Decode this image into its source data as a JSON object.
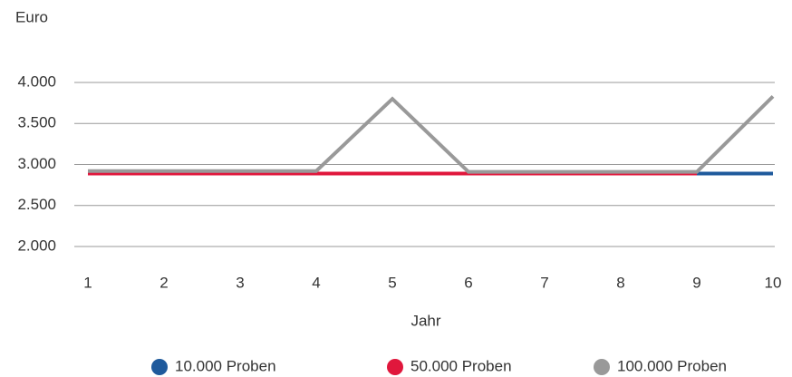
{
  "chart_data": {
    "type": "line",
    "y_label": "Euro",
    "x_label": "Jahr",
    "categories": [
      "1",
      "2",
      "3",
      "4",
      "5",
      "6",
      "7",
      "8",
      "9",
      "10"
    ],
    "series": [
      {
        "name": "10.000 Proben",
        "color": "#1f5a9c",
        "values": [
          2890,
          2890,
          2890,
          2890,
          2890,
          2890,
          2890,
          2890,
          2890,
          2890
        ]
      },
      {
        "name": "50.000 Proben",
        "color": "#e0173c",
        "values": [
          2890,
          2890,
          2890,
          2890,
          2890,
          2890,
          2890,
          2890,
          2890,
          null
        ]
      },
      {
        "name": "100.000 Proben",
        "color": "#999999",
        "values": [
          2920,
          2920,
          2920,
          2920,
          3800,
          2910,
          2910,
          2910,
          2910,
          3830
        ]
      }
    ],
    "ylim": [
      2000,
      4000
    ],
    "yticks": [
      {
        "value": 2000,
        "label": "2.000"
      },
      {
        "value": 2500,
        "label": "2.500"
      },
      {
        "value": 3000,
        "label": "3.000"
      },
      {
        "value": 3500,
        "label": "3.500"
      },
      {
        "value": 4000,
        "label": "4.000"
      }
    ],
    "grid": true,
    "legend": "bottom"
  }
}
